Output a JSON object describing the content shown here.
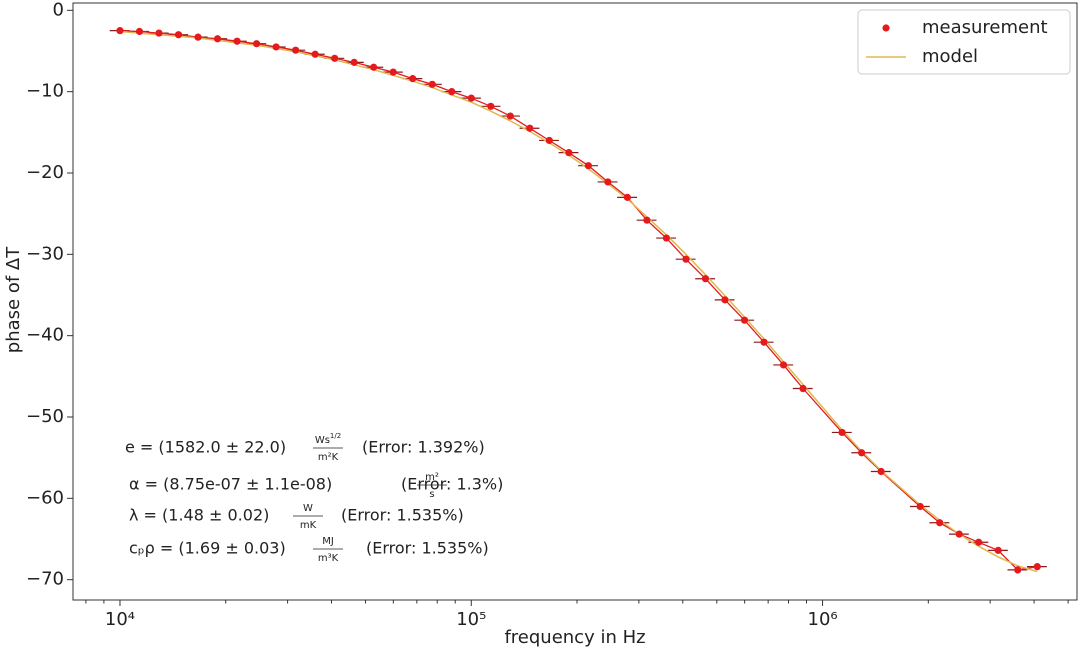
{
  "chart_data": {
    "type": "scatter",
    "xlabel": "frequency in Hz",
    "ylabel": "phase of ΔT",
    "xscale": "log",
    "xlim": [
      7350,
      5300000
    ],
    "ylim": [
      -72.5,
      0.9
    ],
    "xticks": [
      {
        "value": 10000,
        "label": "10⁴"
      },
      {
        "value": 100000,
        "label": "10⁵"
      },
      {
        "value": 1000000,
        "label": "10⁶"
      }
    ],
    "xminorticks": [
      8000,
      9000,
      20000,
      30000,
      40000,
      50000,
      60000,
      70000,
      80000,
      90000,
      200000,
      300000,
      400000,
      500000,
      600000,
      700000,
      800000,
      900000,
      2000000,
      3000000,
      4000000,
      5000000
    ],
    "yticks": [
      0,
      {
        "value": -10,
        "label": "−10"
      },
      {
        "value": -20,
        "label": "−20"
      },
      {
        "value": -30,
        "label": "−30"
      },
      {
        "value": -40,
        "label": "−40"
      },
      {
        "value": -50,
        "label": "−50"
      },
      {
        "value": -60,
        "label": "−60"
      },
      {
        "value": -70,
        "label": "−70"
      }
    ],
    "legend": "upper right",
    "x": [
      10000,
      11365,
      12915,
      14678,
      16681,
      18957,
      21544,
      24484,
      27826,
      31623,
      35938,
      40842,
      46416,
      52749,
      59948,
      68129,
      77426,
      87992,
      100000,
      113650,
      129155,
      146780,
      166810,
      189570,
      215443,
      244844,
      278256,
      316228,
      359381,
      408424,
      464159,
      527488,
      599484,
      681292,
      774264,
      879923,
      1136464,
      1291550,
      1467799,
      1895734,
      2154435,
      2448437,
      2782559,
      3162278,
      3593814,
      4084239
    ],
    "xerr": [
      650,
      740,
      840,
      950,
      1080,
      1230,
      1400,
      1590,
      1810,
      2060,
      2340,
      2650,
      3020,
      3430,
      3900,
      4430,
      5030,
      5720,
      6500,
      7390,
      8390,
      9540,
      10840,
      12320,
      14000,
      15910,
      18090,
      20550,
      23360,
      26550,
      30170,
      34290,
      38970,
      44280,
      50330,
      57190,
      73870,
      83950,
      95410,
      123220,
      140040,
      159150,
      180870,
      205550,
      233600,
      265480
    ],
    "error_color": "#8b1a1a",
    "series": [
      {
        "name": "measurement",
        "color": "#e41a1c",
        "values": [
          -2.5,
          -2.6,
          -2.8,
          -3.0,
          -3.3,
          -3.5,
          -3.8,
          -4.1,
          -4.5,
          -4.9,
          -5.4,
          -5.9,
          -6.4,
          -7.0,
          -7.6,
          -8.4,
          -9.1,
          -10.0,
          -10.8,
          -11.8,
          -13.0,
          -14.5,
          -16.0,
          -17.5,
          -19.1,
          -21.1,
          -23.0,
          -25.8,
          -28.0,
          -30.6,
          -33.0,
          -35.6,
          -38.1,
          -40.8,
          -43.6,
          -46.5,
          -51.9,
          -54.4,
          -56.7,
          -61.0,
          -63.0,
          -64.4,
          -65.4,
          -66.4,
          -68.8,
          -68.4
        ]
      },
      {
        "name": "model",
        "color": "#e0b850",
        "values": [
          -2.6,
          -2.8,
          -3.0,
          -3.2,
          -3.4,
          -3.7,
          -4.0,
          -4.3,
          -4.7,
          -5.1,
          -5.6,
          -6.1,
          -6.7,
          -7.3,
          -8.0,
          -8.7,
          -9.5,
          -10.4,
          -11.3,
          -12.4,
          -13.6,
          -14.9,
          -16.3,
          -17.8,
          -19.5,
          -21.3,
          -23.2,
          -25.4,
          -27.6,
          -30.0,
          -32.5,
          -35.1,
          -37.7,
          -40.4,
          -43.2,
          -46.0,
          -51.6,
          -54.2,
          -56.6,
          -60.8,
          -62.7,
          -64.4,
          -65.9,
          -67.2,
          -68.3,
          -69.0
        ]
      }
    ],
    "annotations": [
      {
        "lead": "e = (1582.0 ± 22.0)",
        "num": "Ws",
        "num_sup": "1/2",
        "den": "m²K",
        "error": "(Error: 1.392%)"
      },
      {
        "lead": "α = (8.75e-07 ± 1.1e-08)",
        "num": "m²",
        "den": "s",
        "error": "(Error: 1.3%)"
      },
      {
        "lead": "λ = (1.48 ± 0.02)",
        "num": "W",
        "den": "mK",
        "error": "(Error: 1.535%)"
      },
      {
        "lead": "cₚρ = (1.69 ± 0.03)",
        "num": "MJ",
        "den": "m³K",
        "error": "(Error: 1.535%)"
      }
    ]
  }
}
